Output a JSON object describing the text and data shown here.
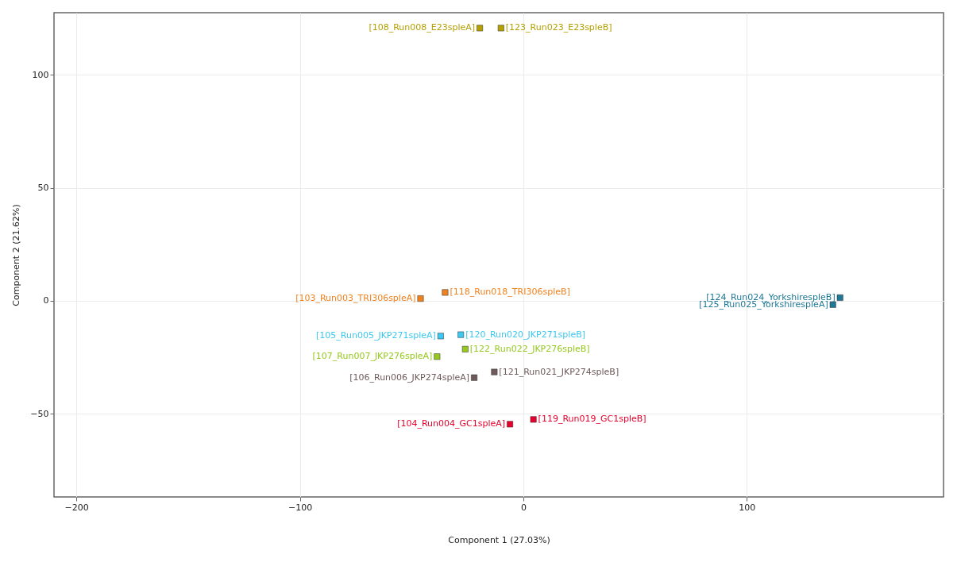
{
  "chart_data": {
    "type": "scatter",
    "xlabel": "Component 1 (27.03%)",
    "ylabel": "Component 2 (21.62%)",
    "xlim": [
      -210,
      188
    ],
    "ylim": [
      -86.8,
      127.5
    ],
    "xticks": [
      -200,
      -100,
      0,
      100
    ],
    "yticks": [
      -50,
      0,
      50,
      100
    ],
    "grid": true,
    "marker": "square",
    "series": [
      {
        "color": "#b4a000",
        "x": [
          -19.5,
          -10
        ],
        "values": [
          120.7,
          120.7
        ]
      },
      {
        "color": "#f0821e",
        "x": [
          -46,
          -35
        ],
        "values": [
          1,
          3.7
        ]
      },
      {
        "color": "#3cc8f0",
        "x": [
          -37,
          -28
        ],
        "values": [
          -15.6,
          -15
        ]
      },
      {
        "color": "#96c81e",
        "x": [
          -38.6,
          -26
        ],
        "values": [
          -24.7,
          -21.4
        ]
      },
      {
        "color": "#6e5a5a",
        "x": [
          -22,
          -13
        ],
        "values": [
          -34,
          -31.5
        ]
      },
      {
        "color": "#e6002d",
        "x": [
          -6,
          4.5
        ],
        "values": [
          -54.6,
          -52.5
        ]
      },
      {
        "color": "#1e7896",
        "x": [
          138.5,
          141.7
        ],
        "values": [
          -1.7,
          1.4
        ]
      }
    ],
    "annotations": [
      {
        "text": "[108_Run008_E23spleA]",
        "x": -19.5,
        "y": 120.7
      },
      {
        "text": "[123_Run023_E23spleB]",
        "x": -10,
        "y": 120.7
      },
      {
        "text": "[103_Run003_TRI306spleA]",
        "x": -46,
        "y": 1
      },
      {
        "text": "[118_Run018_TRI306spleB]",
        "x": -35,
        "y": 3.7
      },
      {
        "text": "[105_Run005_JKP271spleA]",
        "x": -37,
        "y": -15.6
      },
      {
        "text": "[120_Run020_JKP271spleB]",
        "x": -28,
        "y": -15
      },
      {
        "text": "[107_Run007_JKP276spleA]",
        "x": -38.6,
        "y": -24.7
      },
      {
        "text": "[122_Run022_JKP276spleB]",
        "x": -26,
        "y": -21.4
      },
      {
        "text": "[106_Run006_JKP274spleA]",
        "x": -22,
        "y": -34
      },
      {
        "text": "[121_Run021_JKP274spleB]",
        "x": -13,
        "y": -31.5
      },
      {
        "text": "[104_Run004_GC1spleA]",
        "x": -6,
        "y": -54.6
      },
      {
        "text": "[119_Run019_GC1spleB]",
        "x": 4.5,
        "y": -52.5
      },
      {
        "text": "[125_Run025_YorkshirespleA]",
        "x": 138.5,
        "y": -1.7
      },
      {
        "text": "[124_Run024_YorkshirespleB]",
        "x": 141.7,
        "y": 1.4
      }
    ]
  }
}
